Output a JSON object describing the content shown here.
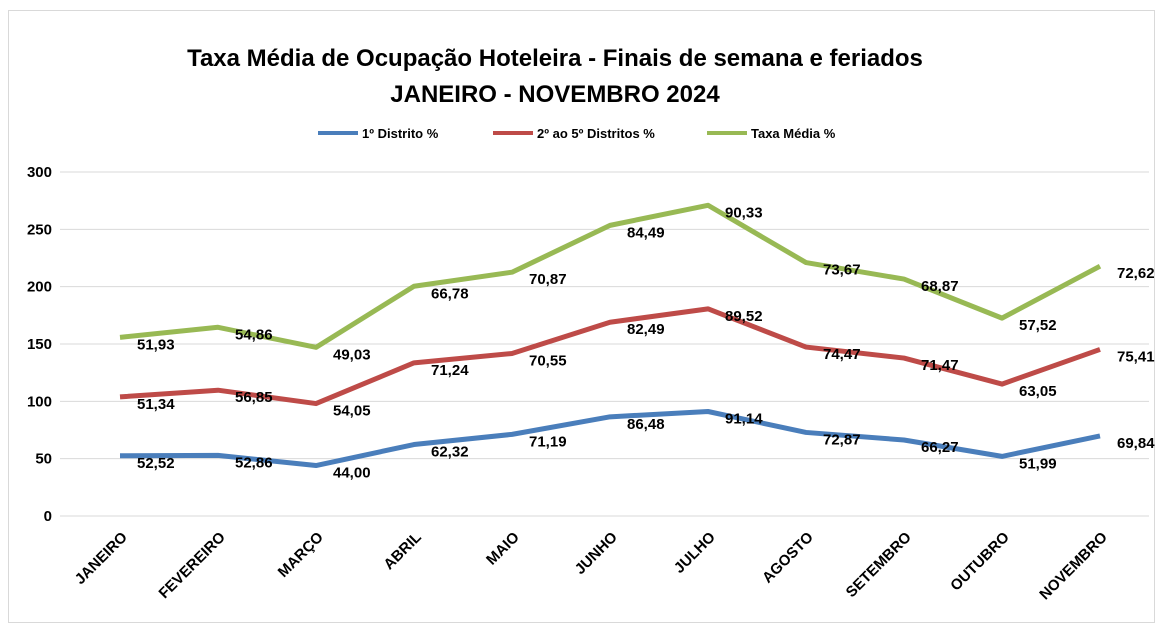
{
  "chart_data": {
    "type": "line",
    "stacked": true,
    "title": "Taxa Média de Ocupação Hoteleira - Finais de semana e feriados",
    "subtitle": "JANEIRO - NOVEMBRO 2024",
    "categories": [
      "JANEIRO",
      "FEVEREIRO",
      "MARÇO",
      "ABRIL",
      "MAIO",
      "JUNHO",
      "JULHO",
      "AGOSTO",
      "SETEMBRO",
      "OUTUBRO",
      "NOVEMBRO"
    ],
    "series": [
      {
        "name": "1º Distrito %",
        "color": "#4a7ebb",
        "values": [
          52.52,
          52.86,
          44.0,
          62.32,
          71.19,
          86.48,
          91.14,
          72.87,
          66.27,
          51.99,
          69.84
        ],
        "value_labels": [
          "52,52",
          "52,86",
          "44,00",
          "62,32",
          "71,19",
          "86,48",
          "91,14",
          "72,87",
          "66,27",
          "51,99",
          "69,84"
        ]
      },
      {
        "name": "2º ao 5º Distritos %",
        "color": "#be4b48",
        "values": [
          51.34,
          56.85,
          54.05,
          71.24,
          70.55,
          82.49,
          89.52,
          74.47,
          71.47,
          63.05,
          75.41
        ],
        "value_labels": [
          "51,34",
          "56,85",
          "54,05",
          "71,24",
          "70,55",
          "82,49",
          "89,52",
          "74,47",
          "71,47",
          "63,05",
          "75,41"
        ]
      },
      {
        "name": "Taxa Média %",
        "color": "#98b954",
        "values": [
          51.93,
          54.86,
          49.03,
          66.78,
          70.87,
          84.49,
          90.33,
          73.67,
          68.87,
          57.52,
          72.62
        ],
        "value_labels": [
          "51,93",
          "54,86",
          "49,03",
          "66,78",
          "70,87",
          "84,49",
          "90,33",
          "73,67",
          "68,87",
          "57,52",
          "72,62"
        ]
      }
    ],
    "ylim": [
      0,
      300
    ],
    "yticks": [
      0,
      50,
      100,
      150,
      200,
      250,
      300
    ],
    "grid": true,
    "legend": "top"
  }
}
